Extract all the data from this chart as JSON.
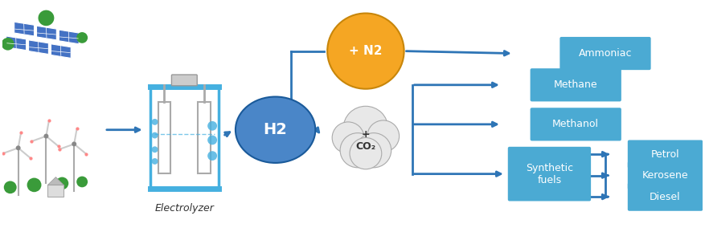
{
  "bg_color": "#ffffff",
  "arrow_color": "#2E75B6",
  "box_color": "#4BAAD3",
  "box_text_color": "#ffffff",
  "h2_circle_color": "#4A86C8",
  "n2_circle_color": "#F5A623",
  "n2_edge_color": "#C8860A",
  "electrolyzer_blue": "#45B0E0",
  "electrolyzer_gray": "#cccccc",
  "cloud_color": "#e8e8e8",
  "cloud_edge": "#aaaaaa",
  "bubble_color": "#45B0E0",
  "figsize": [
    8.77,
    2.94
  ],
  "dpi": 100,
  "labels": {
    "h2": "H2",
    "n2": "+ N2",
    "co2": "+\nCO₂",
    "electrolyzer": "Electrolyzer",
    "ammoniac": "Ammoniac",
    "methane": "Methane",
    "methanol": "Methanol",
    "synthetic": "Synthetic\nfuels",
    "petrol": "Petrol",
    "kerosene": "Kerosene",
    "diesel": "Diesel"
  }
}
